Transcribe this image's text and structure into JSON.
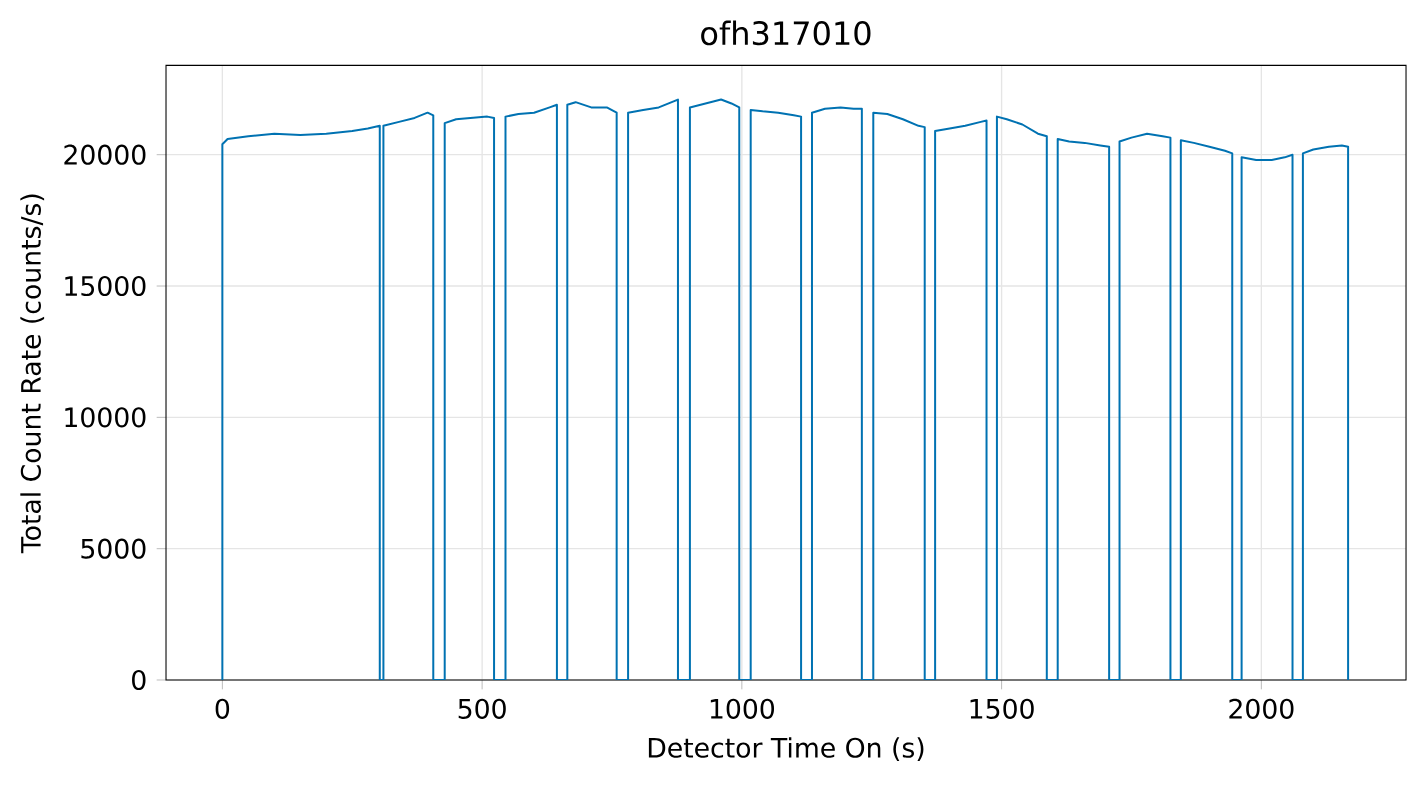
{
  "chart_data": {
    "type": "line",
    "title": "ofh317010",
    "xlabel": "Detector Time On (s)",
    "ylabel": "Total Count Rate (counts/s)",
    "xlim": [
      -108.5,
      2278.5
    ],
    "ylim": [
      0,
      23400
    ],
    "xticks": [
      0,
      500,
      1000,
      1500,
      2000
    ],
    "yticks": [
      0,
      5000,
      10000,
      15000,
      20000
    ],
    "grid": true,
    "series": [
      {
        "color": "#0072b2",
        "x": [
          0,
          0,
          10,
          50,
          100,
          150,
          200,
          250,
          280,
          303,
          303,
          310,
          310,
          340,
          370,
          395,
          406,
          406,
          428,
          428,
          450,
          480,
          510,
          523,
          523,
          545,
          545,
          570,
          600,
          630,
          644,
          644,
          664,
          664,
          680,
          710,
          740,
          759,
          759,
          781,
          781,
          810,
          840,
          865,
          877,
          877,
          900,
          900,
          930,
          960,
          980,
          995,
          995,
          1017,
          1017,
          1040,
          1070,
          1100,
          1114,
          1114,
          1135,
          1135,
          1160,
          1190,
          1215,
          1231,
          1231,
          1253,
          1253,
          1280,
          1310,
          1340,
          1352,
          1352,
          1372,
          1372,
          1400,
          1430,
          1460,
          1471,
          1471,
          1491,
          1491,
          1510,
          1540,
          1570,
          1587,
          1587,
          1608,
          1608,
          1630,
          1660,
          1690,
          1707,
          1707,
          1727,
          1727,
          1750,
          1780,
          1810,
          1825,
          1825,
          1845,
          1845,
          1870,
          1900,
          1930,
          1944,
          1944,
          1962,
          1962,
          1990,
          2020,
          2045,
          2060,
          2060,
          2080,
          2080,
          2100,
          2130,
          2155,
          2167,
          2167
        ],
        "values": [
          0,
          20400,
          20600,
          20700,
          20800,
          20750,
          20800,
          20900,
          21000,
          21100,
          0,
          0,
          21100,
          21250,
          21400,
          21600,
          21500,
          0,
          0,
          21200,
          21350,
          21400,
          21450,
          21400,
          0,
          0,
          21450,
          21550,
          21600,
          21800,
          21900,
          0,
          0,
          21900,
          22000,
          21800,
          21800,
          21600,
          0,
          0,
          21600,
          21700,
          21800,
          22000,
          22100,
          0,
          0,
          21800,
          21950,
          22100,
          21950,
          21800,
          0,
          0,
          21700,
          21650,
          21600,
          21500,
          21450,
          0,
          0,
          21600,
          21750,
          21800,
          21750,
          21750,
          0,
          0,
          21600,
          21550,
          21350,
          21100,
          21050,
          0,
          0,
          20900,
          21000,
          21100,
          21250,
          21300,
          0,
          0,
          21450,
          21350,
          21150,
          20800,
          20700,
          0,
          0,
          20600,
          20500,
          20450,
          20350,
          20300,
          0,
          0,
          20500,
          20650,
          20800,
          20700,
          20650,
          0,
          0,
          20550,
          20450,
          20300,
          20150,
          20050,
          0,
          0,
          19900,
          19800,
          19800,
          19900,
          20000,
          0,
          0,
          20050,
          20200,
          20300,
          20350,
          20300,
          0
        ]
      }
    ]
  }
}
